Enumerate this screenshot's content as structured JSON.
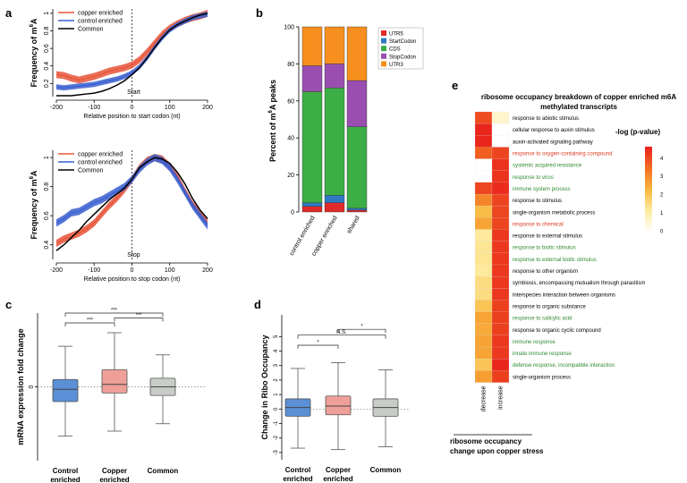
{
  "chart_data": [
    {
      "panel": "a",
      "type": "line",
      "ylabel": "Frequency of m6A",
      "xlabel": "Relative position to start codon (nt)",
      "annotation": "Start",
      "xlim": [
        -200,
        200
      ],
      "ylim": [
        0.05,
        1.05
      ],
      "xticks": [
        -200,
        -100,
        0,
        100,
        200
      ],
      "yticks": [
        0.2,
        0.4,
        0.6,
        0.8,
        1.0
      ],
      "legend": [
        "copper enriched",
        "control enriched",
        "Common"
      ],
      "series": [
        {
          "name": "copper enriched",
          "color": "#e8553a",
          "band": 0.04,
          "x": [
            -200,
            -180,
            -160,
            -140,
            -120,
            -100,
            -80,
            -60,
            -40,
            -20,
            0,
            20,
            40,
            60,
            80,
            100,
            120,
            140,
            160,
            180,
            200
          ],
          "y": [
            0.3,
            0.29,
            0.26,
            0.24,
            0.26,
            0.28,
            0.31,
            0.34,
            0.36,
            0.38,
            0.41,
            0.47,
            0.56,
            0.66,
            0.76,
            0.83,
            0.88,
            0.92,
            0.95,
            0.97,
            1.0
          ]
        },
        {
          "name": "control enriched",
          "color": "#3a5fd0",
          "band": 0.03,
          "x": [
            -200,
            -180,
            -160,
            -140,
            -120,
            -100,
            -80,
            -60,
            -40,
            -20,
            0,
            20,
            40,
            60,
            80,
            100,
            120,
            140,
            160,
            180,
            200
          ],
          "y": [
            0.16,
            0.15,
            0.16,
            0.17,
            0.18,
            0.19,
            0.21,
            0.23,
            0.25,
            0.28,
            0.32,
            0.39,
            0.49,
            0.61,
            0.72,
            0.81,
            0.87,
            0.91,
            0.95,
            0.97,
            0.99
          ]
        },
        {
          "name": "Common",
          "color": "#000000",
          "band": 0,
          "x": [
            -200,
            -180,
            -160,
            -140,
            -120,
            -100,
            -80,
            -60,
            -40,
            -20,
            0,
            20,
            40,
            60,
            80,
            100,
            120,
            140,
            160,
            180,
            200
          ],
          "y": [
            0.06,
            0.06,
            0.06,
            0.07,
            0.08,
            0.09,
            0.11,
            0.14,
            0.18,
            0.23,
            0.3,
            0.38,
            0.49,
            0.61,
            0.72,
            0.81,
            0.87,
            0.91,
            0.95,
            0.98,
            1.0
          ]
        }
      ]
    },
    {
      "panel": "a2",
      "type": "line",
      "ylabel": "Frequency of m6A",
      "xlabel": "Relative position to stop codon (nt)",
      "annotation": "Stop",
      "xlim": [
        -200,
        200
      ],
      "ylim": [
        0.3,
        1.05
      ],
      "xticks": [
        -200,
        -100,
        0,
        100,
        200
      ],
      "yticks": [
        0.4,
        0.6,
        0.8,
        1.0
      ],
      "legend": [
        "copper enriched",
        "control enriched",
        "Common"
      ],
      "series": [
        {
          "name": "copper enriched",
          "color": "#e8553a",
          "band": 0.025,
          "x": [
            -200,
            -180,
            -160,
            -140,
            -120,
            -100,
            -80,
            -60,
            -40,
            -20,
            0,
            20,
            40,
            60,
            80,
            100,
            120,
            140,
            160,
            180,
            200
          ],
          "y": [
            0.41,
            0.44,
            0.46,
            0.48,
            0.51,
            0.55,
            0.61,
            0.67,
            0.72,
            0.78,
            0.85,
            0.93,
            0.98,
            1.0,
            0.99,
            0.94,
            0.87,
            0.77,
            0.68,
            0.62,
            0.55
          ]
        },
        {
          "name": "control enriched",
          "color": "#3a5fd0",
          "band": 0.025,
          "x": [
            -200,
            -180,
            -160,
            -140,
            -120,
            -100,
            -80,
            -60,
            -40,
            -20,
            0,
            20,
            40,
            60,
            80,
            100,
            120,
            140,
            160,
            180,
            200
          ],
          "y": [
            0.55,
            0.58,
            0.62,
            0.63,
            0.66,
            0.69,
            0.71,
            0.74,
            0.77,
            0.8,
            0.85,
            0.92,
            0.97,
            1.0,
            0.98,
            0.93,
            0.85,
            0.76,
            0.67,
            0.6,
            0.53
          ]
        },
        {
          "name": "Common",
          "color": "#000000",
          "band": 0,
          "x": [
            -200,
            -180,
            -160,
            -140,
            -120,
            -100,
            -80,
            -60,
            -40,
            -20,
            0,
            20,
            40,
            60,
            80,
            100,
            120,
            140,
            160,
            180,
            200
          ],
          "y": [
            0.36,
            0.4,
            0.45,
            0.5,
            0.56,
            0.61,
            0.66,
            0.71,
            0.75,
            0.79,
            0.85,
            0.93,
            0.97,
            1.0,
            0.99,
            0.96,
            0.9,
            0.82,
            0.72,
            0.64,
            0.58
          ]
        }
      ]
    },
    {
      "panel": "b",
      "type": "bar",
      "stacked": true,
      "ylabel": "Percent of m6A peaks",
      "categories": [
        "control enriched",
        "copper enriched",
        "shared"
      ],
      "ylim": [
        0,
        100
      ],
      "yticks": [
        0,
        20,
        40,
        60,
        80,
        100
      ],
      "series": [
        {
          "name": "UTR5",
          "color": "#e02a2a",
          "values": [
            3,
            5,
            1
          ]
        },
        {
          "name": "StartCodon",
          "color": "#2e7bc4",
          "values": [
            2,
            4,
            1
          ]
        },
        {
          "name": "CDS",
          "color": "#3cae45",
          "values": [
            60,
            58,
            44
          ]
        },
        {
          "name": "StopCodon",
          "color": "#9a4fb0",
          "values": [
            14,
            13,
            25
          ]
        },
        {
          "name": "UTR3",
          "color": "#f78f1e",
          "values": [
            21,
            20,
            29
          ]
        }
      ]
    },
    {
      "panel": "c",
      "type": "box",
      "ylabel": "mRNA expression fold change",
      "categories": [
        "Control\nenriched",
        "Copper\nenriched",
        "Common"
      ],
      "ylim": [
        -6,
        6
      ],
      "zero_label": "0",
      "boxes": [
        {
          "name": "Control enriched",
          "color": "#5b8fd6",
          "min": -4.0,
          "q1": -1.2,
          "median": -0.2,
          "q3": 0.6,
          "max": 3.3
        },
        {
          "name": "Copper enriched",
          "color": "#ee9f98",
          "min": -3.6,
          "q1": -0.5,
          "median": 0.2,
          "q3": 1.4,
          "max": 4.4
        },
        {
          "name": "Common",
          "color": "#c8ccc6",
          "min": -3.0,
          "q1": -0.7,
          "median": 0.0,
          "q3": 0.7,
          "max": 2.6
        }
      ],
      "significance": [
        {
          "from": 0,
          "to": 1,
          "label": "***",
          "level": 5.2
        },
        {
          "from": 1,
          "to": 2,
          "label": "***",
          "level": 5.6
        },
        {
          "from": 0,
          "to": 2,
          "label": "***",
          "level": 6.0
        }
      ]
    },
    {
      "panel": "d",
      "type": "box",
      "ylabel": "Change in Ribo Occupancy",
      "categories": [
        "Control\nenriched",
        "Copper\nenriched",
        "Common"
      ],
      "ylim": [
        -3.5,
        6.5
      ],
      "yticks": [
        -3,
        -2,
        -1,
        0,
        1,
        2,
        3,
        4,
        5
      ],
      "boxes": [
        {
          "name": "Control enriched",
          "color": "#5b8fd6",
          "min": -2.7,
          "q1": -0.5,
          "median": 0.1,
          "q3": 0.7,
          "max": 2.8
        },
        {
          "name": "Copper enriched",
          "color": "#ee9f98",
          "min": -2.8,
          "q1": -0.4,
          "median": 0.2,
          "q3": 0.9,
          "max": 3.2
        },
        {
          "name": "Common",
          "color": "#c8ccc6",
          "min": -2.6,
          "q1": -0.5,
          "median": 0.1,
          "q3": 0.7,
          "max": 2.7
        }
      ],
      "significance": [
        {
          "from": 0,
          "to": 1,
          "label": "*",
          "level": 4.4
        },
        {
          "from": 0,
          "to": 2,
          "label": "N.S.",
          "level": 5.1
        },
        {
          "from": 1,
          "to": 2,
          "label": "*",
          "level": 5.5
        }
      ]
    },
    {
      "panel": "e",
      "type": "heatmap",
      "title": "ribosome occupancy breakdown of copper enriched m6A methylated transcripts",
      "xlabel": "ribosome occupancy change upon copper stress",
      "columns": [
        "decrease",
        "increase"
      ],
      "colorbar_title": "-log (p-value)",
      "colorbar_ticks": [
        0,
        1,
        2,
        3,
        4
      ],
      "vmax": 4.6,
      "rows": [
        {
          "term": "response to abiotic stimulus",
          "color": "#000000",
          "values": [
            4.0,
            0.6
          ]
        },
        {
          "term": "cellular response to auxin stimulus",
          "color": "#000000",
          "values": [
            4.6,
            0.0
          ]
        },
        {
          "term": "auxin-activated signaling pathway",
          "color": "#000000",
          "values": [
            4.6,
            0.0
          ]
        },
        {
          "term": "response to oxygen-containing compound",
          "color": "#d8371c",
          "values": [
            3.7,
            4.1
          ]
        },
        {
          "term": "systemic acquired resistance",
          "color": "#2f8a2f",
          "values": [
            0.0,
            4.4
          ]
        },
        {
          "term": "response to virus",
          "color": "#2f8a2f",
          "values": [
            0.0,
            4.4
          ]
        },
        {
          "term": "immune system process",
          "color": "#2f8a2f",
          "values": [
            4.1,
            4.5
          ]
        },
        {
          "term": "response to stimulus",
          "color": "#000000",
          "values": [
            3.1,
            4.1
          ]
        },
        {
          "term": "single-organism metabolic process",
          "color": "#000000",
          "values": [
            2.2,
            4.1
          ]
        },
        {
          "term": "response to chemical",
          "color": "#d8371c",
          "values": [
            2.6,
            4.1
          ]
        },
        {
          "term": "response to external stimulus",
          "color": "#000000",
          "values": [
            1.2,
            4.3
          ]
        },
        {
          "term": "response to biotic stimulus",
          "color": "#2f8a2f",
          "values": [
            1.3,
            4.3
          ]
        },
        {
          "term": "response to external biotic stimulus",
          "color": "#2f8a2f",
          "values": [
            1.3,
            4.3
          ]
        },
        {
          "term": "response to other organism",
          "color": "#000000",
          "values": [
            1.2,
            4.3
          ]
        },
        {
          "term": "symbiosis, encompassing mutualism through parasitism",
          "color": "#000000",
          "values": [
            1.5,
            4.3
          ]
        },
        {
          "term": "interspecies interaction between organisms",
          "color": "#000000",
          "values": [
            1.5,
            4.3
          ]
        },
        {
          "term": "response to organic substance",
          "color": "#000000",
          "values": [
            2.0,
            4.2
          ]
        },
        {
          "term": "response to salicylic acid",
          "color": "#2f8a2f",
          "values": [
            2.6,
            4.2
          ]
        },
        {
          "term": "response to organic cyclic compound",
          "color": "#000000",
          "values": [
            2.5,
            4.2
          ]
        },
        {
          "term": "immune response",
          "color": "#2f8a2f",
          "values": [
            2.6,
            4.3
          ]
        },
        {
          "term": "innate immune response",
          "color": "#2f8a2f",
          "values": [
            2.6,
            4.3
          ]
        },
        {
          "term": "defense response, incompatible interaction",
          "color": "#2f8a2f",
          "values": [
            2.0,
            4.6
          ]
        },
        {
          "term": "single-organism process",
          "color": "#000000",
          "values": [
            2.7,
            4.2
          ]
        }
      ]
    }
  ],
  "panel_labels": [
    "a",
    "b",
    "c",
    "d",
    "e"
  ],
  "y_superscript": {
    "a_top_prefix": "Frequency of m",
    "a_top_sup": "6",
    "a_top_suffix": "A",
    "b_prefix": "Percent of m",
    "b_sup": "6",
    "b_suffix": "A peaks"
  },
  "heatmap_title_lines": [
    "ribosome occupancy breakdown of copper enriched m6A",
    "methylated transcripts"
  ],
  "heatmap_xlabel_lines": [
    "ribosome occupancy",
    "change upon copper stress"
  ]
}
